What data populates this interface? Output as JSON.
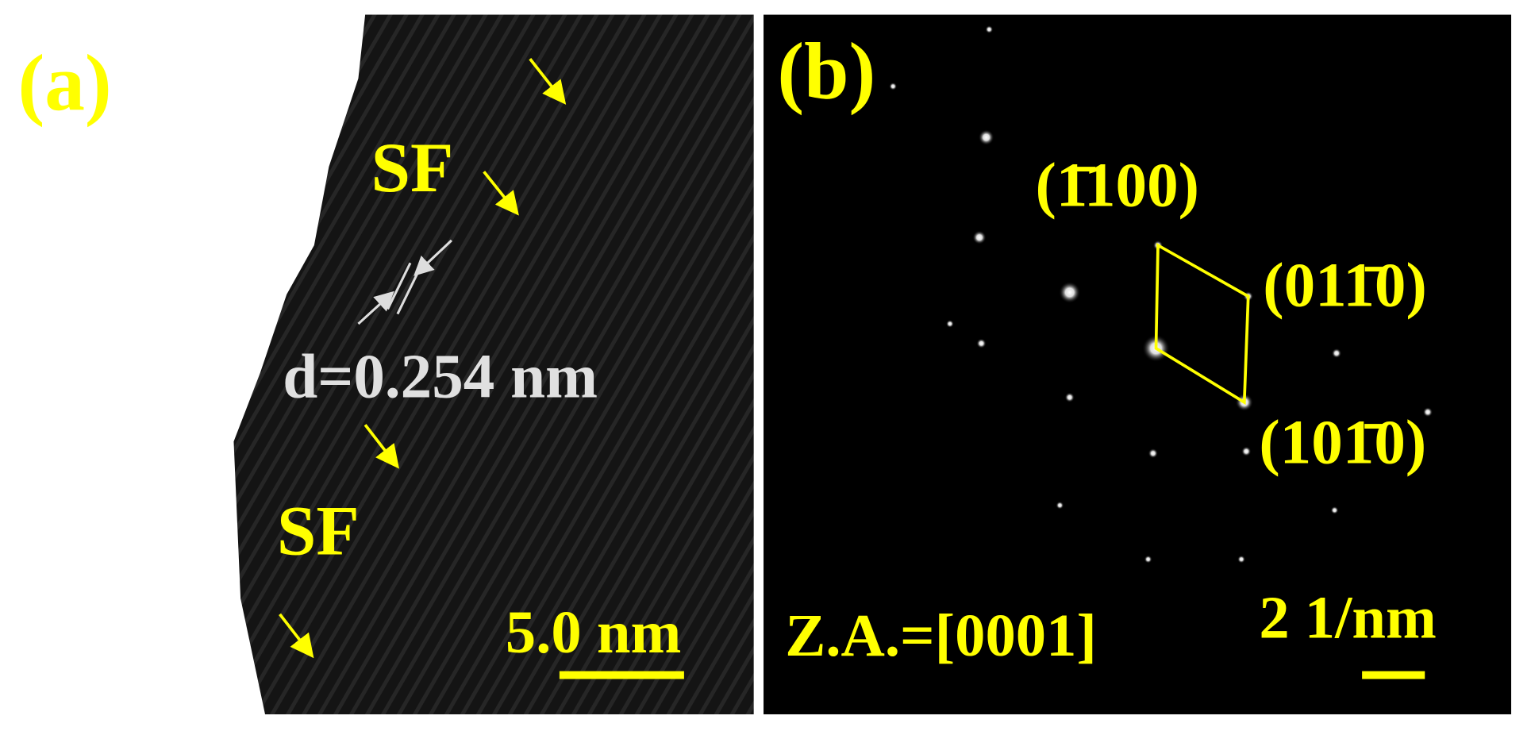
{
  "panel_a": {
    "label": "(a)",
    "sf_top": "SF",
    "sf_bottom": "SF",
    "d_spacing": "d=0.254 nm",
    "scale_bar": "5.0 nm"
  },
  "panel_b": {
    "label": "(b)",
    "spot_1": "(1̄100)",
    "spot_2": "(011̄0)",
    "spot_3": "(101̄0)",
    "zone_axis": "Z.A.=[0001]",
    "scale_bar": "2 1/nm"
  }
}
